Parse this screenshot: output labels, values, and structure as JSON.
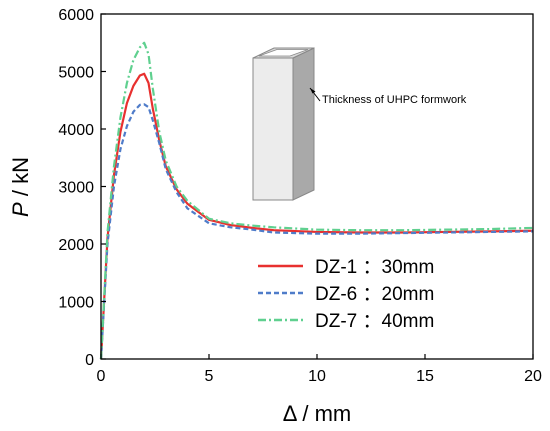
{
  "chart_data": {
    "type": "line",
    "xlabel": "Δ / mm",
    "ylabel_italic": "P",
    "ylabel_unit": " / kN",
    "xlim": [
      0,
      20
    ],
    "ylim": [
      0,
      6000
    ],
    "xticks": [
      0,
      5,
      10,
      15,
      20
    ],
    "yticks": [
      0,
      1000,
      2000,
      3000,
      4000,
      5000,
      6000
    ],
    "grid": false,
    "legend_position": "center-right",
    "annotation": "Thickness of UHPC formwork",
    "series": [
      {
        "name": "DZ-1 ：30mm",
        "color": "#e8302f",
        "dash": "solid",
        "x": [
          0,
          0.3,
          0.6,
          0.9,
          1.2,
          1.5,
          1.8,
          2.0,
          2.2,
          2.4,
          2.7,
          3.0,
          3.5,
          4.0,
          5.0,
          6.0,
          7.0,
          8.0,
          10.0,
          12.0,
          14.0,
          16.0,
          18.0,
          20.0
        ],
        "y": [
          0,
          2100,
          3200,
          3950,
          4450,
          4750,
          4930,
          4960,
          4800,
          4350,
          3800,
          3350,
          2950,
          2700,
          2420,
          2330,
          2280,
          2240,
          2210,
          2200,
          2200,
          2210,
          2220,
          2230
        ]
      },
      {
        "name": "DZ-6 ：20mm",
        "color": "#4f7cc9",
        "dash": "dashed",
        "x": [
          0,
          0.3,
          0.6,
          0.9,
          1.2,
          1.5,
          1.8,
          2.0,
          2.2,
          2.4,
          2.7,
          3.0,
          3.5,
          4.0,
          5.0,
          6.0,
          7.0,
          8.0,
          10.0,
          12.0,
          14.0,
          16.0,
          18.0,
          20.0
        ],
        "y": [
          0,
          2000,
          3000,
          3650,
          4050,
          4300,
          4420,
          4430,
          4380,
          4150,
          3750,
          3300,
          2900,
          2620,
          2360,
          2290,
          2250,
          2200,
          2180,
          2180,
          2190,
          2200,
          2210,
          2220
        ]
      },
      {
        "name": "DZ-7 ：40mm",
        "color": "#5fd08f",
        "dash": "dashdot",
        "x": [
          0,
          0.3,
          0.6,
          0.9,
          1.2,
          1.5,
          1.8,
          2.0,
          2.2,
          2.4,
          2.7,
          3.0,
          3.5,
          4.0,
          5.0,
          6.0,
          7.0,
          8.0,
          10.0,
          12.0,
          14.0,
          16.0,
          18.0,
          20.0
        ],
        "y": [
          0,
          2200,
          3350,
          4200,
          4800,
          5200,
          5420,
          5500,
          5300,
          4700,
          3950,
          3450,
          3000,
          2750,
          2440,
          2360,
          2320,
          2290,
          2250,
          2240,
          2240,
          2250,
          2260,
          2280
        ]
      }
    ]
  }
}
